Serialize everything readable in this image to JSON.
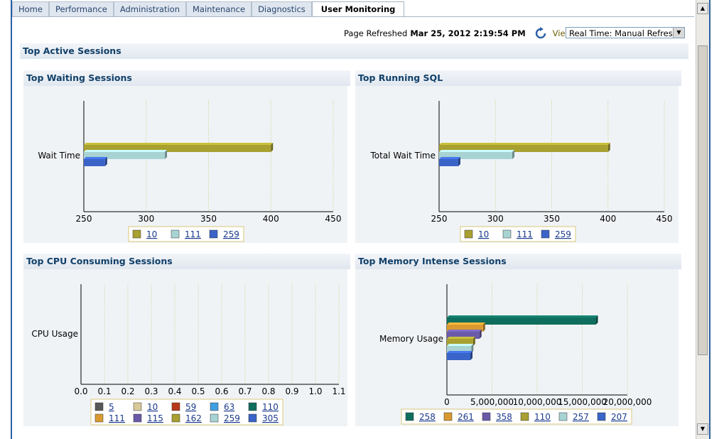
{
  "tabs": [
    {
      "label": "Home",
      "active": false
    },
    {
      "label": "Performance",
      "active": false
    },
    {
      "label": "Administration",
      "active": false
    },
    {
      "label": "Maintenance",
      "active": false
    },
    {
      "label": "Diagnostics",
      "active": false
    },
    {
      "label": "User Monitoring",
      "active": true
    }
  ],
  "refresh": {
    "label": "Page Refreshed",
    "timestamp": "Mar 25, 2012 2:19:54 PM",
    "view_data_label": "View Data",
    "view_data_value": "Real Time: Manual Refresh"
  },
  "section_title": "Top Active Sessions",
  "colors": {
    "olive": "#a8a030",
    "lightblue": "#a8d3d3",
    "blue": "#3a64c8",
    "darkgray": "#585858",
    "tan": "#d8c99a",
    "red": "#b83a1a",
    "skyblue": "#3fa0e0",
    "teal": "#0f6e5e",
    "orange": "#d89a30",
    "purple": "#6a5aa8"
  },
  "chart_data": [
    {
      "id": "waiting",
      "title": "Top Waiting Sessions",
      "type": "bar",
      "orientation": "horizontal",
      "category": "Wait Time",
      "axis_min": 250,
      "axis_max": 450,
      "ticks": [
        "250",
        "300",
        "350",
        "400",
        "450"
      ],
      "tick_values": [
        250,
        300,
        350,
        400,
        450
      ],
      "series": [
        {
          "name": "10",
          "value": 400,
          "color": "#a8a030"
        },
        {
          "name": "111",
          "value": 315,
          "color": "#a8d3d3"
        },
        {
          "name": "259",
          "value": 267,
          "color": "#3a64c8"
        }
      ]
    },
    {
      "id": "sql",
      "title": "Top Running SQL",
      "type": "bar",
      "orientation": "horizontal",
      "category": "Total Wait Time",
      "axis_min": 250,
      "axis_max": 450,
      "ticks": [
        "250",
        "300",
        "350",
        "400",
        "450"
      ],
      "tick_values": [
        250,
        300,
        350,
        400,
        450
      ],
      "series": [
        {
          "name": "10",
          "value": 400,
          "color": "#a8a030"
        },
        {
          "name": "111",
          "value": 315,
          "color": "#a8d3d3"
        },
        {
          "name": "259",
          "value": 267,
          "color": "#3a64c8"
        }
      ]
    },
    {
      "id": "cpu",
      "title": "Top CPU Consuming Sessions",
      "type": "bar",
      "orientation": "horizontal",
      "category": "CPU Usage",
      "axis_min": 0,
      "axis_max": 1.1,
      "ticks": [
        "0.0",
        "0.1",
        "0.2",
        "0.3",
        "0.4",
        "0.5",
        "0.6",
        "0.7",
        "0.8",
        "0.9",
        "1.0",
        "1.1"
      ],
      "tick_values": [
        0,
        0.1,
        0.2,
        0.3,
        0.4,
        0.5,
        0.6,
        0.7,
        0.8,
        0.9,
        1.0,
        1.1
      ],
      "series": [
        {
          "name": "5",
          "value": 0,
          "color": "#585858"
        },
        {
          "name": "10",
          "value": 0,
          "color": "#d8c99a"
        },
        {
          "name": "59",
          "value": 0,
          "color": "#b83a1a"
        },
        {
          "name": "63",
          "value": 0,
          "color": "#3fa0e0"
        },
        {
          "name": "110",
          "value": 0,
          "color": "#0f6e5e"
        },
        {
          "name": "111",
          "value": 0,
          "color": "#d89a30"
        },
        {
          "name": "115",
          "value": 0,
          "color": "#6a5aa8"
        },
        {
          "name": "162",
          "value": 0,
          "color": "#a8a030"
        },
        {
          "name": "259",
          "value": 0,
          "color": "#a8d3d3"
        },
        {
          "name": "305",
          "value": 0,
          "color": "#3a64c8"
        }
      ]
    },
    {
      "id": "memory",
      "title": "Top Memory Intense Sessions",
      "type": "bar",
      "orientation": "horizontal",
      "category": "Memory Usage",
      "axis_min": 0,
      "axis_max": 20000000,
      "ticks": [
        "0",
        "5,000,000",
        "10,000,000",
        "15,000,000",
        "20,000,000"
      ],
      "tick_values": [
        0,
        5000000,
        10000000,
        15000000,
        20000000
      ],
      "series": [
        {
          "name": "258",
          "value": 16500000,
          "color": "#0f6e5e"
        },
        {
          "name": "261",
          "value": 4000000,
          "color": "#d89a30"
        },
        {
          "name": "358",
          "value": 3600000,
          "color": "#6a5aa8"
        },
        {
          "name": "110",
          "value": 2900000,
          "color": "#a8a030"
        },
        {
          "name": "257",
          "value": 2700000,
          "color": "#a8d3d3"
        },
        {
          "name": "207",
          "value": 2600000,
          "color": "#3a64c8"
        }
      ]
    }
  ]
}
